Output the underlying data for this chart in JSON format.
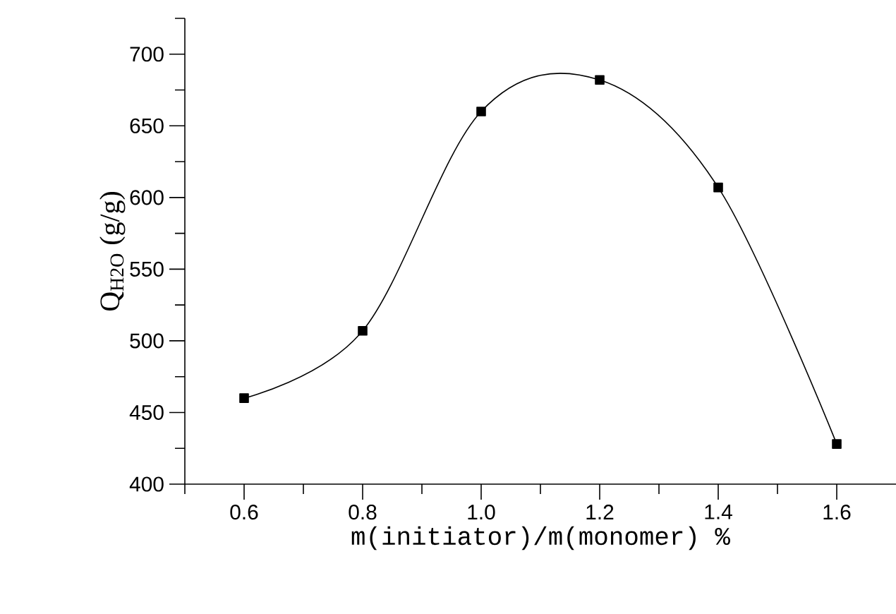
{
  "chart_data": {
    "type": "line",
    "xlabel": "m(initiator)/m(monomer) %",
    "ylabel": "Q$_{H2O}$ (g/g)",
    "x": [
      0.6,
      0.8,
      1.0,
      1.2,
      1.4,
      1.6
    ],
    "values": [
      460,
      507,
      660,
      682,
      607,
      428
    ],
    "color": "#000000",
    "marker": "square",
    "line_style": "solid",
    "xlim": [
      0.5,
      1.7
    ],
    "ylim": [
      400,
      725
    ],
    "xticks": [
      {
        "value": 0.5,
        "label": null
      },
      0.6,
      {
        "value": 0.7,
        "label": null
      },
      0.8,
      {
        "value": 0.9,
        "label": null
      },
      {
        "value": 1.0,
        "label": "1.0"
      },
      {
        "value": 1.1,
        "label": null
      },
      1.2,
      {
        "value": 1.3,
        "label": null
      },
      1.4,
      {
        "value": 1.5,
        "label": null
      },
      1.6
    ],
    "yticks": [
      400,
      {
        "value": 425,
        "label": null
      },
      450,
      {
        "value": 475,
        "label": null
      },
      500,
      {
        "value": 525,
        "label": null
      },
      550,
      {
        "value": 575,
        "label": null
      },
      600,
      {
        "value": 625,
        "label": null
      },
      650,
      {
        "value": 675,
        "label": null
      },
      700,
      {
        "value": 725,
        "label": null
      }
    ]
  }
}
